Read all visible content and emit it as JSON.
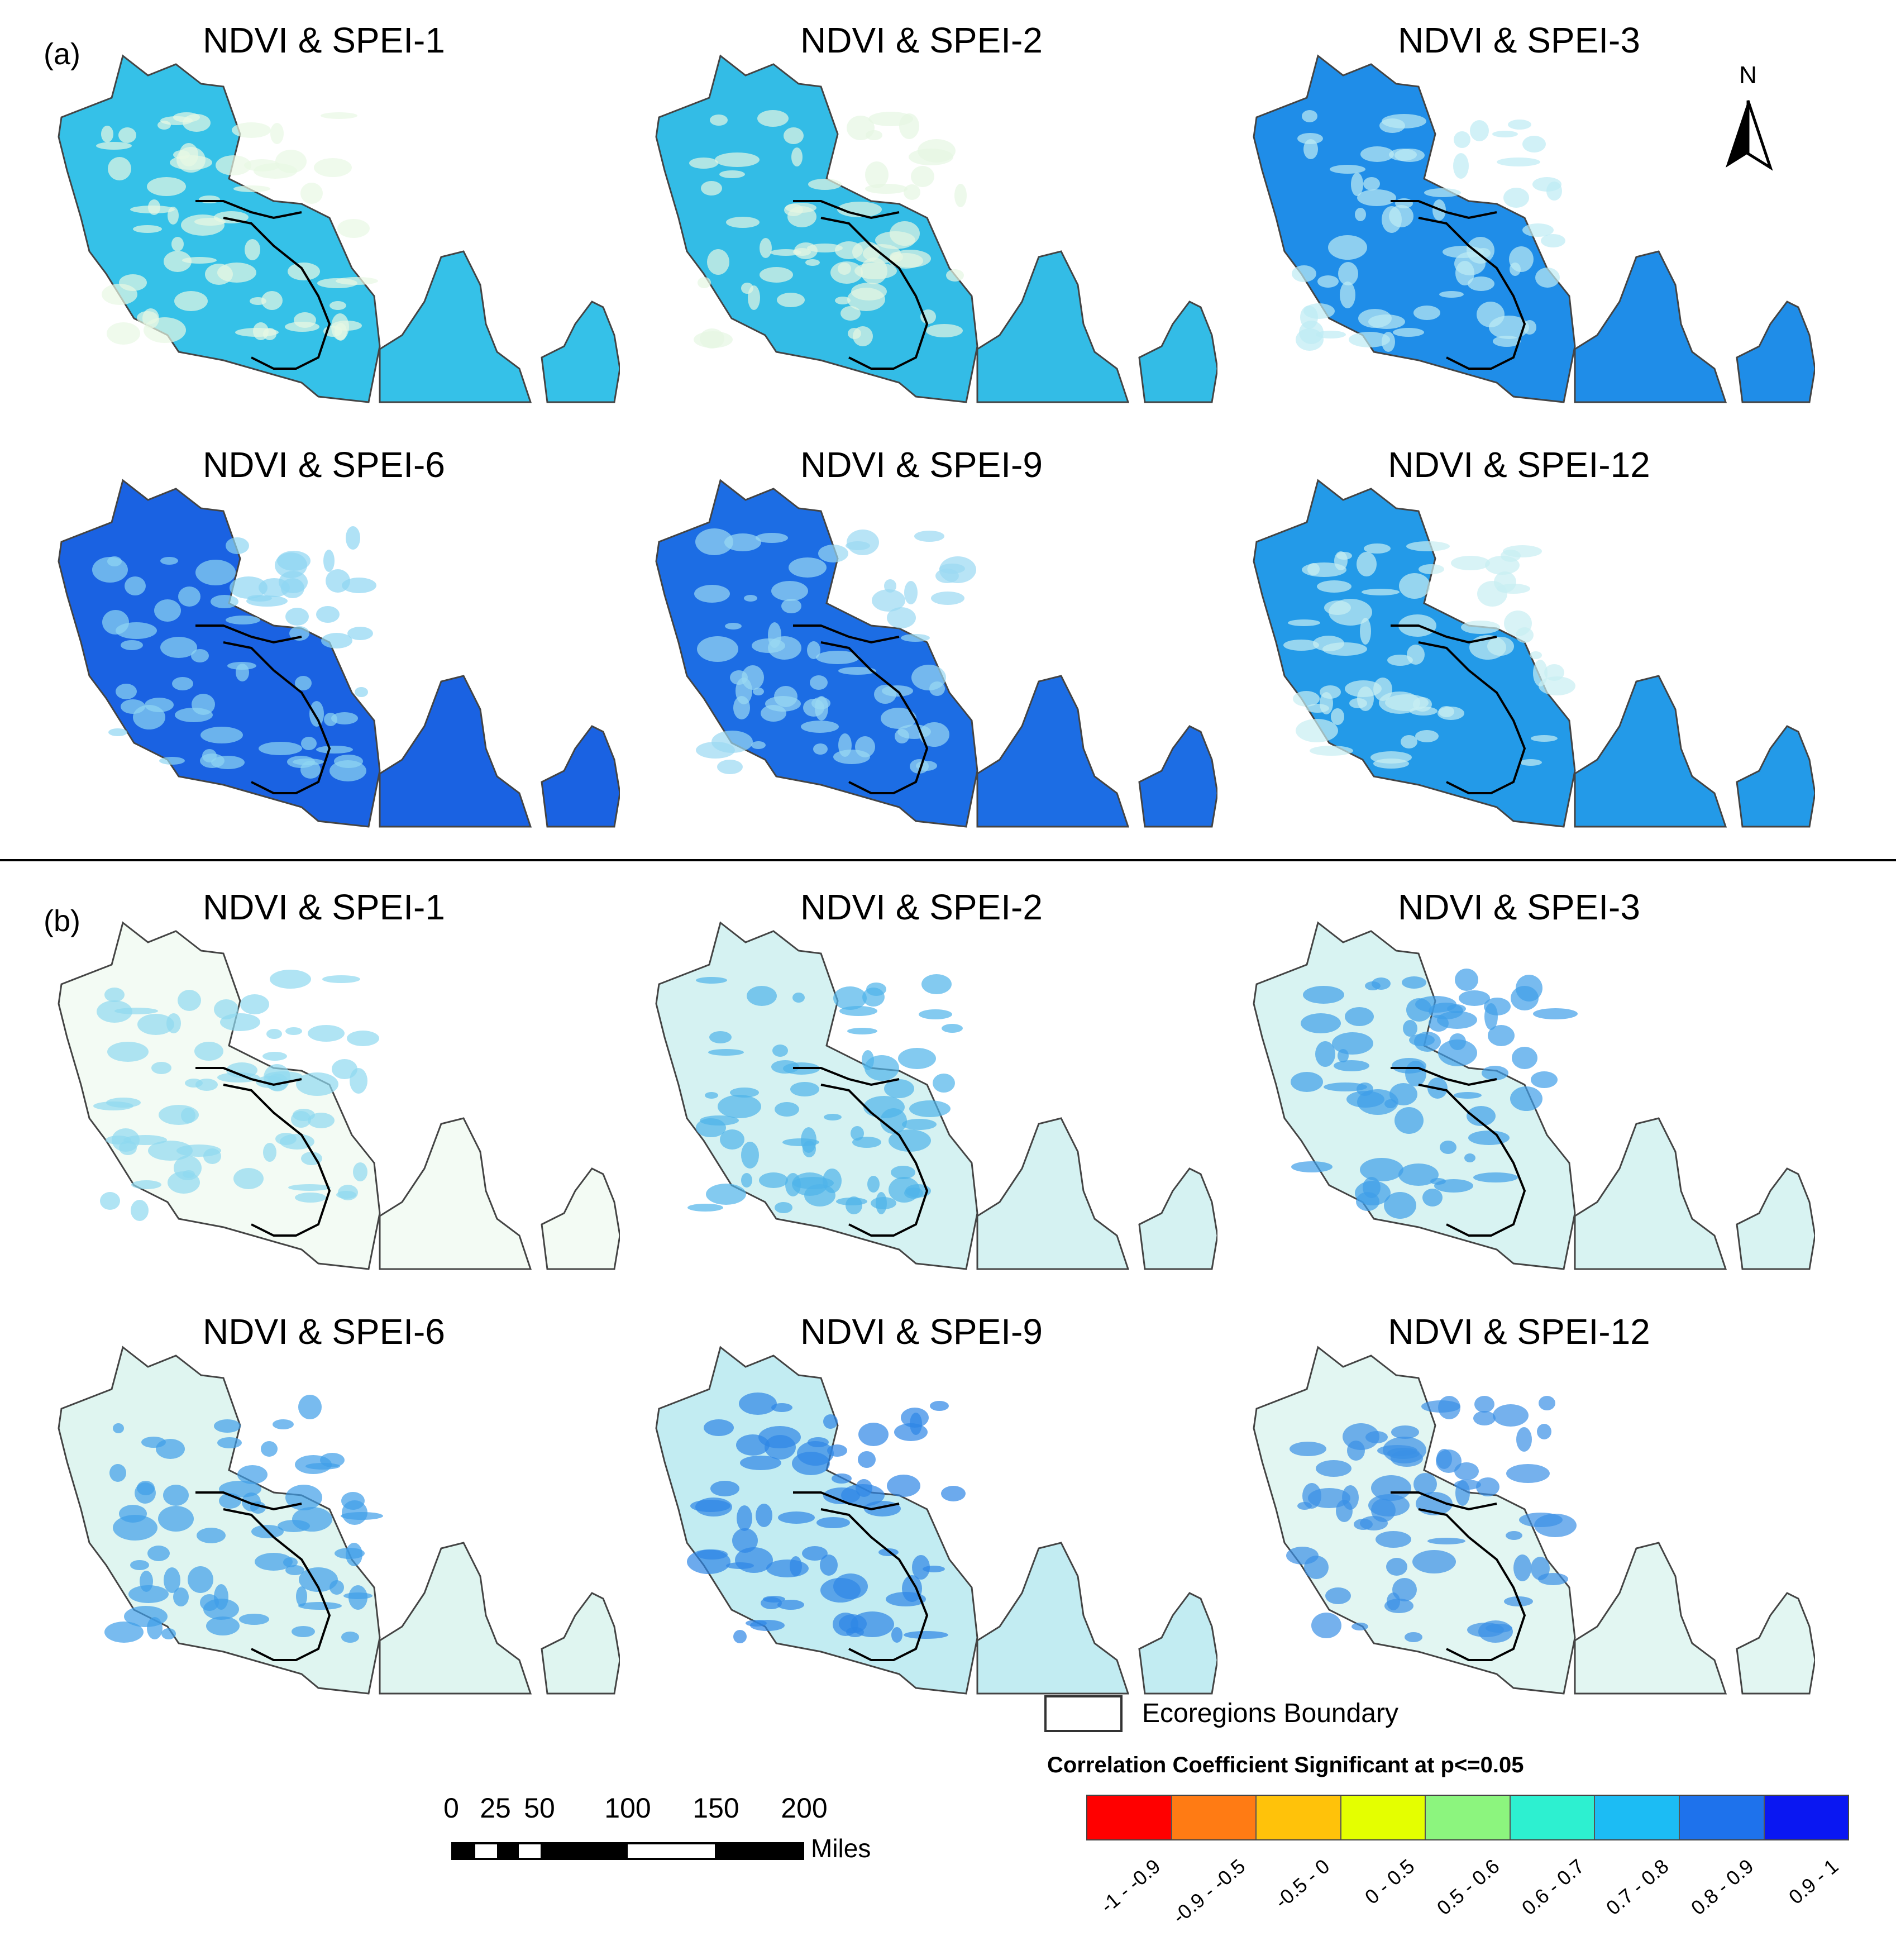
{
  "sections": [
    {
      "label": "(a)",
      "panels": [
        {
          "title": "NDVI & SPEI-1",
          "fill": "#35c1e8",
          "accent": "#e8f8e4"
        },
        {
          "title": "NDVI & SPEI-2",
          "fill": "#33bce6",
          "accent": "#e6f7e2"
        },
        {
          "title": "NDVI & SPEI-3",
          "fill": "#1f8de8",
          "accent": "#bdebf4"
        },
        {
          "title": "NDVI & SPEI-6",
          "fill": "#1a62e2",
          "accent": "#8fd6f2"
        },
        {
          "title": "NDVI & SPEI-9",
          "fill": "#1c6de4",
          "accent": "#9ad9f2"
        },
        {
          "title": "NDVI & SPEI-12",
          "fill": "#239ae8",
          "accent": "#c8eef2"
        }
      ]
    },
    {
      "label": "(b)",
      "panels": [
        {
          "title": "NDVI & SPEI-1",
          "fill": "#f3fbf4",
          "accent": "#8fd9f0"
        },
        {
          "title": "NDVI & SPEI-2",
          "fill": "#d5f2f2",
          "accent": "#4fb4ea"
        },
        {
          "title": "NDVI & SPEI-3",
          "fill": "#d8f3f2",
          "accent": "#3f9ee8"
        },
        {
          "title": "NDVI & SPEI-6",
          "fill": "#dff5f0",
          "accent": "#3f9ee8"
        },
        {
          "title": "NDVI & SPEI-9",
          "fill": "#c2ecf2",
          "accent": "#2e86e6"
        },
        {
          "title": "NDVI & SPEI-12",
          "fill": "#e2f6f2",
          "accent": "#3a90e6"
        }
      ]
    }
  ],
  "north_arrow": {
    "letter": "N",
    "icon": "north-arrow-icon"
  },
  "legend": {
    "boundary_label": "Ecoregions Boundary",
    "title": "Correlation Coefficient Significant at p<=0.05",
    "classes": [
      {
        "label": "-1 - -0.9",
        "color": "#ff0000"
      },
      {
        "label": "-0.9 - -0.5",
        "color": "#ff7b14"
      },
      {
        "label": "-0.5 - 0",
        "color": "#ffc20a"
      },
      {
        "label": "0 - 0.5",
        "color": "#e4ff00"
      },
      {
        "label": "0.5 - 0.6",
        "color": "#8cf57e"
      },
      {
        "label": "0.6 - 0.7",
        "color": "#2df0d0"
      },
      {
        "label": "0.7 - 0.8",
        "color": "#1cbcf4"
      },
      {
        "label": "0.8 - 0.9",
        "color": "#1e72ec"
      },
      {
        "label": "0.9 - 1",
        "color": "#0a17f2"
      }
    ]
  },
  "scale_bar": {
    "ticks": [
      "0",
      "25",
      "50",
      "100",
      "150",
      "200"
    ],
    "tick_values": [
      0,
      25,
      50,
      100,
      150,
      200
    ],
    "unit": "Miles"
  }
}
